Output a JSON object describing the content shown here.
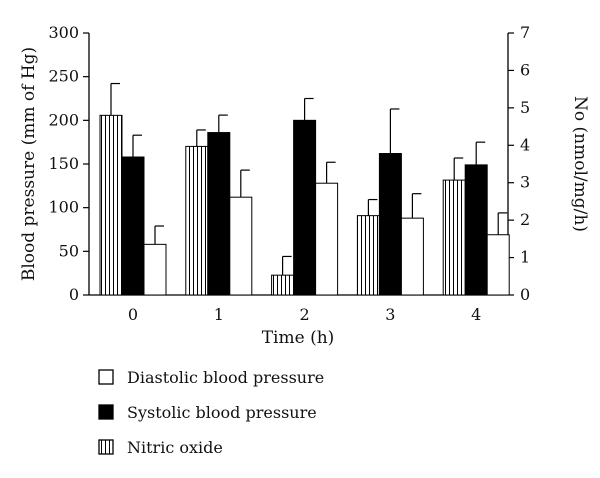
{
  "chart_data": {
    "type": "bar",
    "xlabel": "Time (h)",
    "ylabel_left": "Blood pressure (mm of Hg)",
    "ylabel_right": "No (nmol/mg/h)",
    "ylim_left": [
      0,
      300
    ],
    "ylim_right": [
      0,
      7
    ],
    "yticks_left": [
      0,
      50,
      100,
      150,
      200,
      250,
      300
    ],
    "yticks_right": [
      0,
      1,
      2,
      3,
      4,
      5,
      6,
      7
    ],
    "categories": [
      "0",
      "1",
      "2",
      "3",
      "4"
    ],
    "grid": false,
    "legend_position": "bottom",
    "series": [
      {
        "name": "Nitric oxide",
        "axis": "right",
        "pattern": "vertical-stripes",
        "values": [
          4.8,
          3.97,
          0.53,
          2.12,
          3.07
        ],
        "errors": [
          0.85,
          0.44,
          0.5,
          0.43,
          0.59
        ]
      },
      {
        "name": "Systolic blood pressure",
        "axis": "left",
        "pattern": "solid-black",
        "values": [
          158,
          186,
          200,
          162,
          149
        ],
        "errors": [
          25,
          20,
          25,
          51,
          26
        ]
      },
      {
        "name": "Diastolic blood pressure",
        "axis": "left",
        "pattern": "white",
        "values": [
          58,
          112,
          128,
          88,
          69
        ],
        "errors": [
          21,
          31,
          24,
          28,
          25
        ]
      }
    ]
  },
  "legend": {
    "items": [
      {
        "label": "Diastolic blood pressure",
        "pattern": "white"
      },
      {
        "label": "Systolic blood pressure",
        "pattern": "solid-black"
      },
      {
        "label": "Nitric oxide",
        "pattern": "vertical-stripes"
      }
    ]
  },
  "colors": {
    "bar_outline": "#000000",
    "systolic_fill": "#000000",
    "diastolic_fill": "#ffffff",
    "stripe_color": "#000000"
  }
}
